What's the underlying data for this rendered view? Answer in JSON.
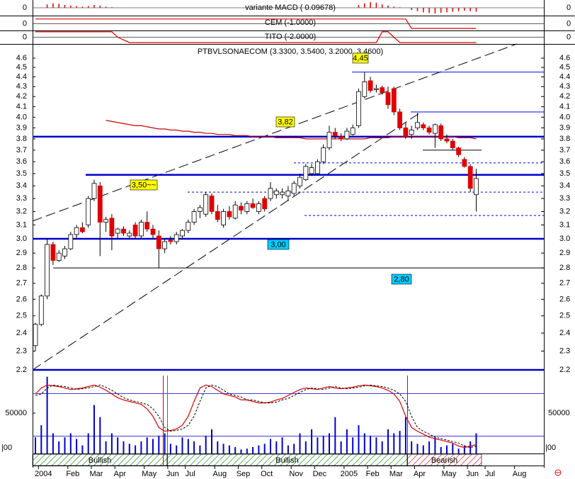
{
  "chart_data": {
    "type": "candlestick",
    "title": "PTBVLSONAECOM (3.3300, 3.5400, 3.2000, 3.4600)",
    "log_scale": true,
    "ylim": [
      2.2,
      4.6
    ],
    "yticks": [
      2.2,
      2.3,
      2.4,
      2.5,
      2.6,
      2.7,
      2.8,
      2.9,
      {
        "value": 3,
        "label": "3.0"
      },
      3.1,
      3.2,
      3.3,
      3.4,
      3.5,
      3.6,
      3.7,
      3.8,
      3.9,
      {
        "value": 4,
        "label": "4.0"
      },
      4.1,
      4.2,
      4.3,
      4.4,
      4.5,
      4.6
    ],
    "up_color": "#ffffff",
    "down_color": "#e00000",
    "categories": [
      null,
      "2004",
      null,
      null,
      null,
      null,
      "Feb",
      null,
      null,
      null,
      "Mar",
      null,
      null,
      null,
      "Apr",
      null,
      null,
      null,
      null,
      "May",
      null,
      null,
      null,
      "Jun",
      null,
      null,
      "Jul",
      null,
      null,
      null,
      null,
      "Aug",
      null,
      null,
      null,
      "Sep",
      null,
      null,
      null,
      "Oct",
      null,
      null,
      null,
      null,
      "Nov",
      null,
      null,
      null,
      "Dec",
      null,
      null,
      null,
      null,
      "2005",
      null,
      null,
      null,
      "Feb",
      null,
      null,
      null,
      "Mar",
      null,
      null,
      null,
      "Apr",
      null,
      null,
      null,
      null,
      "May",
      null,
      null,
      null,
      "Jun",
      null,
      null,
      "Jul",
      null,
      null,
      null,
      null,
      "Aug",
      null,
      null,
      null
    ],
    "open": [
      2.33,
      2.45,
      2.62,
      2.96,
      2.85,
      2.88,
      2.93,
      3.03,
      3.08,
      3.1,
      3.3,
      3.4,
      3.12,
      3.15,
      3.04,
      3.07,
      3.02,
      3.1,
      3.02,
      3.12,
      3.07,
      3.02,
      2.93,
      2.99,
      2.98,
      3.02,
      3.06,
      3.12,
      3.2,
      3.18,
      3.32,
      3.2,
      3.1,
      3.2,
      3.15,
      3.24,
      3.2,
      3.26,
      3.2,
      3.3,
      3.3,
      3.33,
      3.33,
      3.32,
      3.34,
      3.4,
      3.45,
      3.5,
      3.5,
      3.6,
      3.72,
      3.86,
      3.82,
      3.8,
      3.84,
      3.92,
      4.2,
      4.36,
      4.27,
      4.29,
      4.24,
      4.28,
      4.05,
      3.9,
      3.84,
      3.9,
      3.93,
      3.9,
      3.85,
      3.92,
      3.8,
      3.78,
      3.72,
      3.62,
      3.56,
      3.33,
      null,
      null,
      null,
      null,
      null,
      null,
      null,
      null,
      null,
      null
    ],
    "high": [
      2.46,
      2.63,
      3.0,
      2.98,
      2.92,
      2.95,
      3.05,
      3.1,
      3.12,
      3.32,
      3.45,
      3.43,
      3.16,
      3.18,
      3.08,
      3.09,
      3.06,
      3.12,
      3.14,
      3.2,
      3.1,
      3.06,
      3.0,
      3.02,
      3.05,
      3.07,
      3.14,
      3.22,
      3.25,
      3.35,
      3.34,
      3.25,
      3.22,
      3.24,
      3.28,
      3.27,
      3.28,
      3.3,
      3.28,
      3.32,
      3.43,
      3.38,
      3.38,
      3.4,
      3.44,
      3.5,
      3.58,
      3.58,
      3.62,
      3.75,
      3.92,
      3.9,
      3.85,
      3.9,
      3.93,
      4.28,
      4.45,
      4.4,
      4.32,
      4.31,
      4.3,
      4.3,
      4.08,
      3.95,
      3.92,
      4.04,
      3.95,
      3.92,
      3.94,
      3.94,
      3.84,
      3.8,
      3.73,
      3.64,
      3.58,
      3.54,
      null,
      null,
      null,
      null,
      null,
      null,
      null,
      null,
      null,
      null
    ],
    "low": [
      2.3,
      2.44,
      2.6,
      2.82,
      2.84,
      2.86,
      2.92,
      3.0,
      3.04,
      3.08,
      3.28,
      2.88,
      3.05,
      2.92,
      3.0,
      3.02,
      3.0,
      3.0,
      3.0,
      3.05,
      3.0,
      2.8,
      2.9,
      2.96,
      2.96,
      3.0,
      3.04,
      3.1,
      3.15,
      3.16,
      3.18,
      3.12,
      3.08,
      3.14,
      3.14,
      3.18,
      3.18,
      3.22,
      3.18,
      3.2,
      3.28,
      3.3,
      3.3,
      3.28,
      3.32,
      3.38,
      3.44,
      3.48,
      3.49,
      3.58,
      3.7,
      3.8,
      3.78,
      3.79,
      3.83,
      3.9,
      4.18,
      4.24,
      4.24,
      4.22,
      4.08,
      4.02,
      3.88,
      3.8,
      3.8,
      3.88,
      3.88,
      3.84,
      3.72,
      3.78,
      3.76,
      3.7,
      3.64,
      3.55,
      3.35,
      3.2,
      null,
      null,
      null,
      null,
      null,
      null,
      null,
      null,
      null,
      null
    ],
    "close": [
      2.45,
      2.62,
      2.96,
      2.85,
      2.9,
      2.93,
      3.03,
      3.08,
      3.05,
      3.3,
      3.42,
      3.12,
      3.14,
      3.02,
      3.07,
      3.04,
      3.04,
      3.02,
      3.12,
      3.07,
      3.03,
      2.93,
      2.98,
      2.98,
      3.03,
      3.06,
      3.12,
      3.2,
      3.23,
      3.33,
      3.2,
      3.14,
      3.2,
      3.16,
      3.25,
      3.21,
      3.26,
      3.23,
      3.26,
      3.22,
      3.38,
      3.36,
      3.35,
      3.36,
      3.42,
      3.47,
      3.56,
      3.55,
      3.6,
      3.72,
      3.86,
      3.83,
      3.8,
      3.87,
      3.9,
      4.25,
      4.35,
      4.26,
      4.28,
      4.24,
      4.12,
      4.05,
      3.9,
      3.82,
      3.88,
      3.95,
      3.9,
      3.86,
      3.93,
      3.8,
      3.78,
      3.72,
      3.66,
      3.56,
      3.38,
      3.46,
      null,
      null,
      null,
      null,
      null,
      null,
      null,
      null,
      null,
      null
    ],
    "moving_average": {
      "color": "#cc0000",
      "values": [
        null,
        null,
        null,
        null,
        null,
        null,
        null,
        null,
        null,
        null,
        null,
        null,
        3.97,
        3.96,
        3.95,
        3.94,
        3.93,
        3.92,
        3.92,
        3.91,
        3.9,
        3.89,
        3.89,
        3.88,
        3.88,
        3.87,
        3.87,
        3.86,
        3.86,
        3.85,
        3.85,
        3.84,
        3.84,
        3.84,
        3.83,
        3.83,
        3.83,
        3.82,
        3.82,
        3.82,
        3.82,
        3.81,
        3.81,
        3.81,
        3.81,
        3.81,
        3.8,
        3.8,
        3.8,
        3.8,
        3.8,
        3.8,
        3.8,
        3.8,
        3.8,
        3.8,
        3.8,
        3.81,
        3.81,
        3.81,
        3.81,
        3.82,
        3.82,
        3.82,
        3.82,
        3.82,
        3.82,
        3.82,
        3.82,
        3.82,
        3.82,
        3.82,
        3.81,
        3.81,
        3.81,
        3.8,
        null,
        null,
        null,
        null,
        null,
        null,
        null,
        null,
        null,
        null
      ]
    },
    "levels": [
      {
        "value": 4.45,
        "color": "#0000ff",
        "style": "thin"
      },
      {
        "value": 4.05,
        "color": "#0000ff",
        "style": "thin"
      },
      {
        "value": 3.82,
        "color": "#0000cc",
        "style": "thick"
      },
      {
        "value": 3.7,
        "color": "#000000",
        "style": "thin"
      },
      {
        "value": 3.59,
        "color": "#0000ff",
        "style": "dashed"
      },
      {
        "value": 3.49,
        "color": "#0000cc",
        "style": "thick"
      },
      {
        "value": 3.35,
        "color": "#0000ff",
        "style": "dashed"
      },
      {
        "value": 3.17,
        "color": "#0000ff",
        "style": "dashed"
      },
      {
        "value": 3,
        "color": "#0000cc",
        "style": "thick"
      },
      {
        "value": 2.8,
        "color": "#000000",
        "style": "thin"
      },
      {
        "value": 2.2,
        "color": "#0000cc",
        "style": "thick"
      }
    ],
    "annotations": [
      {
        "label": "4,45",
        "color": "#ffff00"
      },
      {
        "label": "3,82",
        "color": "#ffff00"
      },
      {
        "label": "3,50~~",
        "color": "#ffff00"
      },
      {
        "label": "3,00",
        "color": "#00ccff"
      },
      {
        "label": "2,80",
        "color": "#00ccff"
      }
    ],
    "signals": [
      {
        "label": "Bullish",
        "color": "#2e9a2e"
      },
      {
        "label": "Bullish",
        "color": "#2e9a2e"
      },
      {
        "label": "Bearish",
        "color": "#e03030"
      }
    ],
    "macd": {
      "title": "variante MACD ( 0.09678)",
      "color": "#e00000",
      "ylim": [
        -1.375,
        1.375
      ],
      "yticks": [
        0
      ],
      "values": [
        0,
        0,
        0.6,
        0.8,
        0.7,
        0.5,
        0.4,
        0.3,
        0.2,
        0.3,
        0.5,
        0.4,
        0.2,
        0.1,
        0,
        0,
        0,
        0,
        0,
        0,
        0,
        0,
        0,
        0,
        0,
        0,
        0,
        0,
        0,
        0,
        0,
        0,
        0,
        0,
        0,
        0,
        0,
        0,
        0,
        0,
        0,
        0,
        0,
        0,
        0,
        0,
        0,
        0,
        0,
        0,
        0,
        0,
        0,
        0,
        0,
        0.5,
        0.8,
        1,
        0.9,
        0.6,
        0.4,
        0.2,
        0.1,
        0,
        -0.4,
        -0.6,
        -0.8,
        -0.9,
        -1,
        -0.9,
        -0.8,
        -0.7,
        -0.6,
        -0.5,
        -0.6,
        -0.7,
        null,
        null,
        null,
        null,
        null,
        null,
        null,
        null,
        null,
        null
      ]
    },
    "cem": {
      "title": "CEM (-1.0000)",
      "color": "#e00000",
      "ylim": [
        -1.43,
        1.57
      ],
      "yticks": [
        0
      ],
      "values": [
        1,
        1,
        1,
        1,
        1,
        1,
        1,
        1,
        1,
        1,
        1,
        1,
        1,
        1,
        1,
        1,
        1,
        1,
        1,
        1,
        1,
        1,
        1,
        1,
        1,
        1,
        1,
        1,
        1,
        1,
        1,
        1,
        1,
        1,
        1,
        1,
        1,
        1,
        1,
        1,
        1,
        1,
        1,
        1,
        1,
        1,
        1,
        1,
        1,
        1,
        1,
        1,
        1,
        1,
        1,
        1,
        1,
        1,
        1,
        1,
        1,
        1,
        1,
        1,
        -1,
        -1,
        -1,
        -1,
        -1,
        -1,
        -1,
        -1,
        -1,
        -1,
        -1,
        -1,
        null,
        null,
        null,
        null,
        null,
        null,
        null,
        null,
        null,
        null
      ]
    },
    "tito": {
      "title": "TITO (-2.0000)",
      "color": "#e00000",
      "ylim": [
        -2.5,
        2.25
      ],
      "yticks": [
        0
      ],
      "values": [
        2,
        2,
        2,
        2,
        2,
        2,
        2,
        2,
        2,
        2,
        2,
        2,
        2,
        2,
        0,
        -1,
        -2,
        -2,
        -2,
        -2,
        -2,
        -2,
        -2,
        -2,
        -2,
        -2,
        -2,
        -2,
        -2,
        -2,
        -2,
        -2,
        -2,
        -2,
        -2,
        -2,
        -2,
        -2,
        -2,
        -2,
        -2,
        -2,
        -2,
        -2,
        -2,
        -2,
        -2,
        -2,
        -2,
        -2,
        -2,
        -2,
        -2,
        -2,
        -2,
        -2,
        -2,
        -2,
        -2,
        2,
        2,
        0,
        -2,
        -2,
        -2,
        -2,
        -2,
        -2,
        -2,
        -2,
        -2,
        -2,
        -2,
        -2,
        -2,
        -2,
        null,
        null,
        null,
        null,
        null,
        null,
        null,
        null,
        null,
        null
      ]
    },
    "volume": {
      "color": "#0000cc",
      "ylim": [
        0,
        96500
      ],
      "yticks": [
        50000
      ],
      "bottom_label": "|00",
      "values": [
        20000,
        35000,
        95000,
        25000,
        15000,
        20000,
        25000,
        18000,
        10000,
        25000,
        60000,
        45000,
        15000,
        25000,
        20000,
        15000,
        12000,
        10000,
        15000,
        20000,
        18000,
        22000,
        25000,
        12000,
        10000,
        20000,
        18000,
        15000,
        10000,
        22000,
        30000,
        15000,
        12000,
        10000,
        8000,
        5000,
        6000,
        8000,
        10000,
        12000,
        18000,
        15000,
        20000,
        10000,
        12000,
        25000,
        15000,
        30000,
        20000,
        22000,
        25000,
        45000,
        15000,
        30000,
        20000,
        35000,
        25000,
        22000,
        20000,
        15000,
        30000,
        25000,
        28000,
        45000,
        15000,
        12000,
        10000,
        15000,
        20000,
        8000,
        10000,
        12000,
        6000,
        10000,
        15000,
        25000,
        null,
        null,
        null,
        null,
        null,
        null,
        null,
        null,
        null,
        null
      ]
    },
    "oscillator": {
      "ylim": [
        0,
        100
      ],
      "series": [
        {
          "color": "#dd0000",
          "values": [
            80,
            88,
            92,
            91,
            90,
            88,
            86,
            87,
            88,
            90,
            92,
            89,
            85,
            80,
            75,
            72,
            70,
            68,
            66,
            60,
            50,
            35,
            30,
            31,
            33,
            38,
            50,
            70,
            88,
            92,
            90,
            85,
            80,
            78,
            76,
            72,
            72,
            70,
            68,
            68,
            69,
            72,
            74,
            78,
            82,
            86,
            88,
            87,
            86,
            88,
            90,
            88,
            87,
            88,
            89,
            91,
            92,
            91,
            90,
            88,
            85,
            80,
            70,
            50,
            35,
            30,
            26,
            22,
            20,
            18,
            16,
            14,
            10,
            8,
            10,
            12,
            null,
            null,
            null,
            null,
            null,
            null,
            null,
            null,
            null,
            null
          ]
        },
        {
          "color": "#000000",
          "values": [
            78,
            80,
            88,
            92,
            91,
            90,
            88,
            86,
            87,
            88,
            90,
            92,
            89,
            85,
            80,
            75,
            72,
            70,
            68,
            66,
            60,
            50,
            35,
            30,
            31,
            33,
            38,
            50,
            70,
            88,
            92,
            90,
            85,
            80,
            78,
            76,
            72,
            72,
            70,
            68,
            68,
            69,
            72,
            74,
            78,
            82,
            86,
            88,
            87,
            86,
            88,
            90,
            88,
            87,
            88,
            89,
            91,
            92,
            91,
            90,
            88,
            85,
            80,
            70,
            50,
            35,
            30,
            26,
            22,
            20,
            18,
            16,
            14,
            10,
            8,
            10,
            null,
            null,
            null,
            null,
            null,
            null,
            null,
            null,
            null,
            null
          ]
        }
      ]
    }
  }
}
